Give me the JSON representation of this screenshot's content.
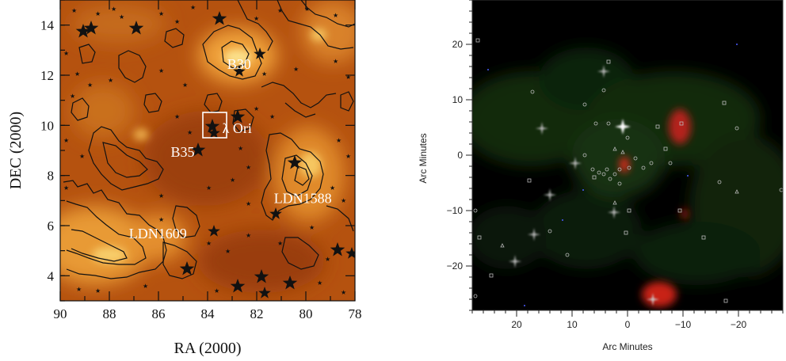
{
  "left_panel": {
    "xlabel": "RA (2000)",
    "ylabel": "DEC (2000)",
    "x_ticks": [
      "90",
      "88",
      "86",
      "84",
      "82",
      "80",
      "78"
    ],
    "y_ticks": [
      "14",
      "12",
      "10",
      "8",
      "6",
      "4"
    ],
    "annotations": [
      {
        "text": "B30",
        "ra": 83.2,
        "dec": 12.25
      },
      {
        "text": "λ Ori",
        "ra": 83.4,
        "dec": 9.7
      },
      {
        "text": "B35",
        "ra": 85.5,
        "dec": 8.75
      },
      {
        "text": "LDN1588",
        "ra": 81.3,
        "dec": 6.9
      },
      {
        "text": "LDN1609",
        "ra": 87.2,
        "dec": 5.5
      }
    ],
    "colors": {
      "background": "#b5520f",
      "bright": "#f7c45a",
      "dark": "#7a2806"
    }
  },
  "right_panel": {
    "xlabel": "Arc Minutes",
    "ylabel": "Arc Minutes",
    "x_ticks": [
      "20",
      "10",
      "0",
      "−10",
      "−20"
    ],
    "y_ticks": [
      "20",
      "10",
      "0",
      "−10",
      "−20"
    ],
    "colors": {
      "background": "#000000",
      "green": "#1d3a14",
      "red": "#d02018"
    }
  }
}
